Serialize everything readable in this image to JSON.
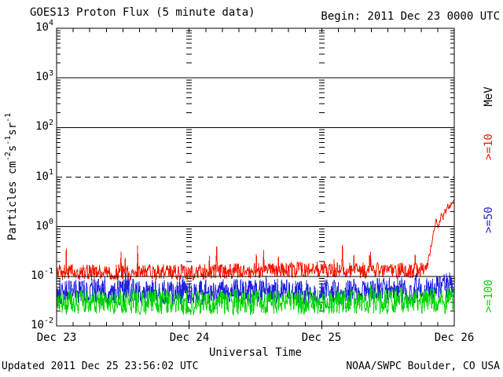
{
  "text": {
    "title": "GOES13 Proton Flux (5 minute data)",
    "begin": "Begin: 2011 Dec 23 0000 UTC",
    "xlabel": "Universal Time",
    "x_ticks": [
      "Dec 23",
      "Dec 24",
      "Dec 25",
      "Dec 26"
    ],
    "footer_left": "Updated 2011 Dec 25 23:56:02 UTC",
    "footer_right": "NOAA/SWPC Boulder, CO USA",
    "legend_title": "MeV"
  },
  "legend": {
    "title": "MeV",
    "entries": [
      {
        "label": ">=10",
        "color": "#f81500"
      },
      {
        "label": ">=50",
        "color": "#2222dd"
      },
      {
        "label": ">=100",
        "color": "#00d400"
      }
    ]
  },
  "chart_data": {
    "type": "line",
    "title": "GOES13 Proton Flux (5 minute data)",
    "begin": "2011 Dec 23 0000 UTC",
    "updated": "2011 Dec 25 23:56:02 UTC",
    "source": "NOAA/SWPC Boulder, CO USA",
    "xlabel": "Universal Time",
    "x_tick_labels": [
      "Dec 23",
      "Dec 24",
      "Dec 25",
      "Dec 26"
    ],
    "x_range_days": [
      0,
      3
    ],
    "sample_interval_minutes": 5,
    "y_units_parts": [
      "Particles cm",
      "^-2",
      "s",
      "^-1",
      "sr",
      "^-1"
    ],
    "y_ticks": [
      "10^4",
      "10^3",
      "10^2",
      "10^1",
      "10^0",
      "10^-1",
      "10^-2"
    ],
    "ylim_log10": [
      -2,
      4
    ],
    "grid": {
      "solid_lines_at": [
        1000,
        100,
        1,
        0.1
      ],
      "dashed_line_at": 10,
      "day_marker_days": [
        1,
        2
      ],
      "hour_tick_interval_hours": 3
    },
    "legend_title": "MeV",
    "series": [
      {
        "name": "Proton flux >=10 MeV",
        "label": ">=10",
        "color": "#f81500",
        "baseline_anchors_day_flux": [
          [
            0,
            0.12
          ],
          [
            0.5,
            0.12
          ],
          [
            1.0,
            0.12
          ],
          [
            1.5,
            0.13
          ],
          [
            2.0,
            0.14
          ],
          [
            2.3,
            0.13
          ],
          [
            2.7,
            0.13
          ],
          [
            2.79,
            0.15
          ],
          [
            2.816,
            0.3
          ],
          [
            2.834,
            0.55
          ],
          [
            2.852,
            1.0
          ],
          [
            2.863,
            1.35
          ],
          [
            2.875,
            0.95
          ],
          [
            2.887,
            1.15
          ],
          [
            2.905,
            1.8
          ],
          [
            2.917,
            1.5
          ],
          [
            2.929,
            2.2
          ],
          [
            2.94,
            2.0
          ],
          [
            2.952,
            2.6
          ],
          [
            2.964,
            2.4
          ],
          [
            2.976,
            3.0
          ],
          [
            2.982,
            2.8
          ],
          [
            2.997,
            3.4
          ]
        ],
        "noise_decades": 0.16,
        "rise_start_day": 2.8,
        "rise_noise_decades": 0.05,
        "spike_probability": 0.03,
        "spike_decades": 0.5,
        "min_flux": 0.08,
        "seed": 11
      },
      {
        "name": "Proton flux >=50 MeV",
        "label": ">=50",
        "color": "#2222dd",
        "baseline_anchors_day_flux": [
          [
            0,
            0.05
          ],
          [
            1,
            0.048
          ],
          [
            2,
            0.05
          ],
          [
            2.8,
            0.052
          ],
          [
            2.9,
            0.06
          ],
          [
            2.997,
            0.07
          ]
        ],
        "noise_decades": 0.26,
        "spike_probability": 0.02,
        "spike_decades": 0.33,
        "min_flux": 0.024,
        "seed": 7
      },
      {
        "name": "Proton flux >=100 MeV",
        "label": ">=100",
        "color": "#00d400",
        "baseline_anchors_day_flux": [
          [
            0,
            0.031
          ],
          [
            1,
            0.03
          ],
          [
            2,
            0.031
          ],
          [
            2.997,
            0.032
          ]
        ],
        "noise_decades": 0.26,
        "spike_probability": 0.012,
        "spike_decades": 0.28,
        "min_flux": 0.016,
        "seed": 3
      }
    ]
  }
}
